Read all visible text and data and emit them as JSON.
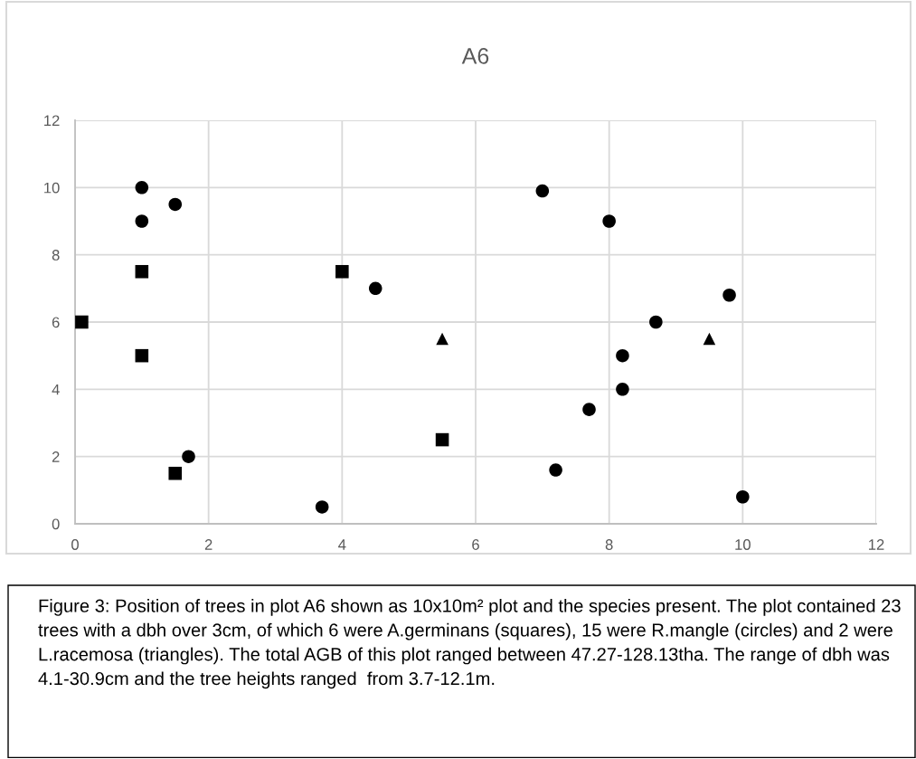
{
  "chart_data": {
    "type": "scatter",
    "title": "A6",
    "xlim": [
      0,
      12
    ],
    "xticks": [
      0,
      2,
      4,
      6,
      8,
      10,
      12
    ],
    "ylim": [
      0,
      12
    ],
    "yticks": [
      0,
      2,
      4,
      6,
      8,
      10,
      12
    ],
    "grid": true,
    "series": [
      {
        "color": "#000000",
        "marker": "square",
        "x": [
          0.1,
          1,
          1,
          1.5,
          4,
          5.5
        ],
        "values": [
          6,
          7.5,
          5,
          1.5,
          7.5,
          2.5
        ]
      },
      {
        "color": "#000000",
        "marker": "circle",
        "x": [
          1,
          1,
          1.5,
          1.7,
          3.7,
          4.5,
          7,
          8,
          9.8,
          8.7,
          8.2,
          8.2,
          7.7,
          7.2,
          10
        ],
        "values": [
          10,
          9,
          9.5,
          2,
          0.5,
          7,
          9.9,
          9,
          6.8,
          6,
          5,
          4,
          3.4,
          1.6,
          0.8
        ]
      },
      {
        "color": "#000000",
        "marker": "triangle",
        "x": [
          5.5,
          9.5
        ],
        "values": [
          5.5,
          5.5
        ]
      }
    ],
    "annotations": [
      "Figure 3: Position of trees in plot A6 shown as 10x10m² plot and the species present. The plot contained 23 trees with a dbh over 3cm, of which 6 were A.germinans (squares), 15 were R.mangle (circles) and 2 were L.racemosa (triangles). The total AGB of this plot ranged between 47.27-128.13tha. The range of dbh was 4.1-30.9cm and the tree heights ranged  from 3.7-12.1m."
    ]
  }
}
